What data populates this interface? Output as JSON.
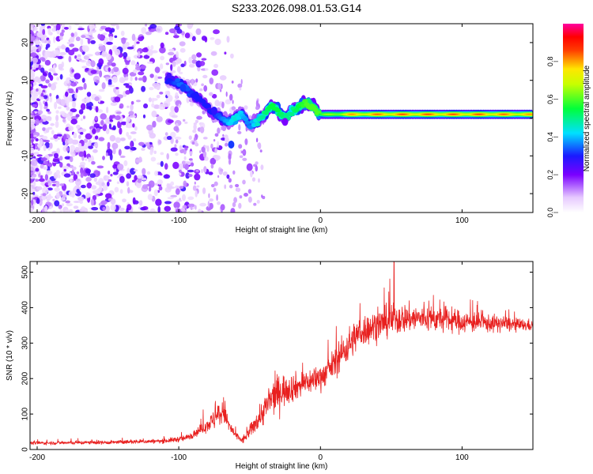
{
  "title": "S233.2026.098.01.53.G14",
  "chart_data": [
    {
      "type": "heatmap",
      "name": "spectrogram",
      "xlabel": "Height of straight line (km)",
      "ylabel": "Frequency (Hz)",
      "xlim": [
        -205,
        150
      ],
      "ylim": [
        -25,
        25
      ],
      "xticks": [
        -200,
        -100,
        0,
        100
      ],
      "yticks": [
        -20,
        -10,
        0,
        10,
        20
      ],
      "colorbar": {
        "label": "Normalized spectral amplitude",
        "range": [
          0.0,
          1.0
        ],
        "ticks": [
          0.0,
          0.2,
          0.4,
          0.6,
          0.8
        ],
        "tick_labels": [
          "0.0",
          "0.2",
          "0.4",
          "0.6",
          "0.8"
        ],
        "colormap": "rainbow (white → violet → blue → cyan → green → yellow → red → magenta)"
      },
      "ridge": {
        "description": "dominant frequency line vs height",
        "x": [
          -105,
          -100,
          -95,
          -90,
          -85,
          -80,
          -75,
          -70,
          -65,
          -60,
          -55,
          -50,
          -45,
          -40,
          -35,
          -30,
          -25,
          -20,
          -15,
          -10,
          -5,
          0,
          20,
          50,
          80,
          100,
          120,
          150
        ],
        "y": [
          10,
          9,
          8,
          6,
          5,
          3,
          1,
          0,
          -1,
          0,
          1,
          -2,
          -1,
          1,
          3,
          2,
          0,
          2,
          3,
          4,
          3,
          1,
          1,
          1,
          1,
          1,
          1,
          1
        ],
        "amp": [
          0.3,
          0.35,
          0.35,
          0.3,
          0.3,
          0.3,
          0.3,
          0.35,
          0.4,
          0.45,
          0.4,
          0.35,
          0.45,
          0.5,
          0.55,
          0.55,
          0.5,
          0.5,
          0.55,
          0.6,
          0.6,
          0.6,
          0.8,
          0.85,
          0.85,
          0.85,
          0.85,
          0.8
        ]
      },
      "notes": "Noise-dominated scattered low-amplitude energy for heights < -100 km; coherent signal band near 1 Hz for heights > 0 km."
    },
    {
      "type": "line",
      "name": "snr",
      "xlabel": "Height of straight line (km)",
      "ylabel": "SNR (10 * v/v)",
      "xlim": [
        -205,
        150
      ],
      "ylim": [
        0,
        530
      ],
      "xticks": [
        -200,
        -100,
        0,
        100
      ],
      "yticks": [
        0,
        100,
        200,
        300,
        400,
        500
      ],
      "color": "#e8201f",
      "envelope": {
        "x": [
          -205,
          -150,
          -110,
          -95,
          -85,
          -78,
          -72,
          -68,
          -65,
          -60,
          -55,
          -50,
          -45,
          -40,
          -35,
          -30,
          -25,
          -20,
          -15,
          -10,
          -5,
          0,
          5,
          10,
          15,
          20,
          25,
          30,
          40,
          50,
          60,
          70,
          80,
          90,
          100,
          110,
          120,
          130,
          140,
          150
        ],
        "mean": [
          18,
          20,
          24,
          32,
          55,
          75,
          95,
          110,
          70,
          40,
          25,
          50,
          80,
          110,
          140,
          160,
          170,
          175,
          180,
          190,
          195,
          205,
          220,
          245,
          270,
          295,
          320,
          335,
          350,
          365,
          370,
          370,
          368,
          365,
          360,
          358,
          355,
          355,
          350,
          350
        ],
        "spread": [
          10,
          12,
          14,
          20,
          30,
          50,
          80,
          90,
          50,
          25,
          25,
          40,
          60,
          90,
          110,
          110,
          100,
          90,
          80,
          80,
          80,
          80,
          80,
          90,
          100,
          110,
          100,
          100,
          95,
          100,
          90,
          85,
          80,
          75,
          70,
          60,
          55,
          50,
          40,
          35
        ]
      },
      "peak": {
        "x": 52,
        "y": 530
      }
    }
  ]
}
